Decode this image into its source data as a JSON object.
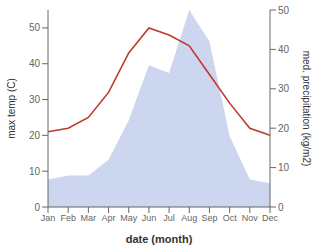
{
  "chart_data": {
    "type": "line",
    "xlabel": "date (month)",
    "ylabel": "max temp (C)",
    "y2label": "med. precipitation (kg/m2)",
    "categories": [
      "Jan",
      "Feb",
      "Mar",
      "Apr",
      "May",
      "Jun",
      "Jul",
      "Aug",
      "Sep",
      "Oct",
      "Nov",
      "Dec"
    ],
    "series": [
      {
        "type": "area",
        "axis": "y2",
        "color": "#b8c4e8",
        "values": [
          7,
          8,
          8,
          12,
          22,
          36,
          34,
          50,
          42,
          18,
          7,
          6
        ]
      },
      {
        "type": "line",
        "color": "#c0392b",
        "values": [
          21,
          22,
          25,
          32,
          43,
          50,
          48,
          45,
          37,
          29,
          22,
          20
        ]
      }
    ],
    "ylim": [
      0,
      55
    ],
    "yticks": [
      0,
      10,
      20,
      30,
      40,
      50
    ],
    "y2lim": [
      0,
      50
    ],
    "y2ticks": [
      0,
      10,
      20,
      30,
      40,
      50
    ],
    "grid": false
  }
}
